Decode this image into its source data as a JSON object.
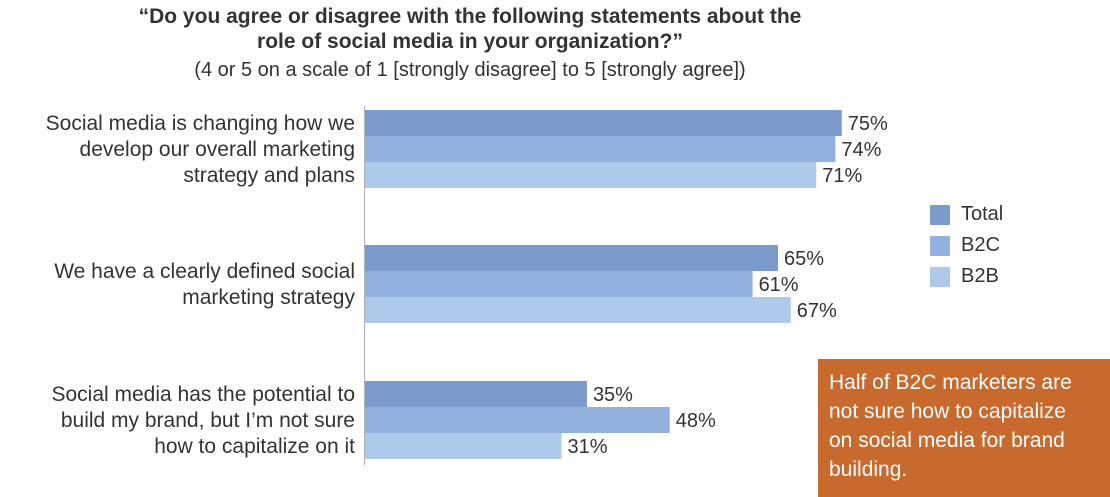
{
  "title_line1": "“Do you agree or disagree with the following statements about the",
  "title_line2": "role of social media in your organization?”",
  "subtitle": "(4 or 5 on a scale of 1 [strongly disagree] to 5 [strongly agree])",
  "colors": {
    "Total": "#7b9bcc",
    "B2C": "#93b1de",
    "B2B": "#afc9ea",
    "callout_bg": "#c8692d"
  },
  "chart_data": {
    "type": "bar",
    "orientation": "horizontal",
    "categories": [
      [
        "Social media is changing how we",
        "develop our overall marketing",
        "strategy and plans"
      ],
      [
        "We have a clearly defined social",
        "marketing strategy"
      ],
      [
        "Social media has the potential to",
        "build my brand, but I’m not sure",
        "how to capitalize on it"
      ]
    ],
    "series": [
      {
        "name": "Total",
        "values": [
          75,
          65,
          35
        ],
        "labels": [
          "75%",
          "65%",
          "35%"
        ]
      },
      {
        "name": "B2C",
        "values": [
          74,
          61,
          48
        ],
        "labels": [
          "74%",
          "61%",
          "48%"
        ]
      },
      {
        "name": "B2B",
        "values": [
          71,
          67,
          31
        ],
        "labels": [
          "71%",
          "67%",
          "31%"
        ]
      }
    ],
    "xlim": [
      0,
      100
    ],
    "grid": false,
    "legend_position": "right"
  },
  "legend": [
    {
      "name": "Total",
      "color": "#7b9bcc"
    },
    {
      "name": "B2C",
      "color": "#93b1de"
    },
    {
      "name": "B2B",
      "color": "#afc9ea"
    }
  ],
  "callout": {
    "lines": [
      "Half of B2C marketers are",
      "not sure how to capitalize",
      "on social media for brand",
      "building."
    ]
  }
}
